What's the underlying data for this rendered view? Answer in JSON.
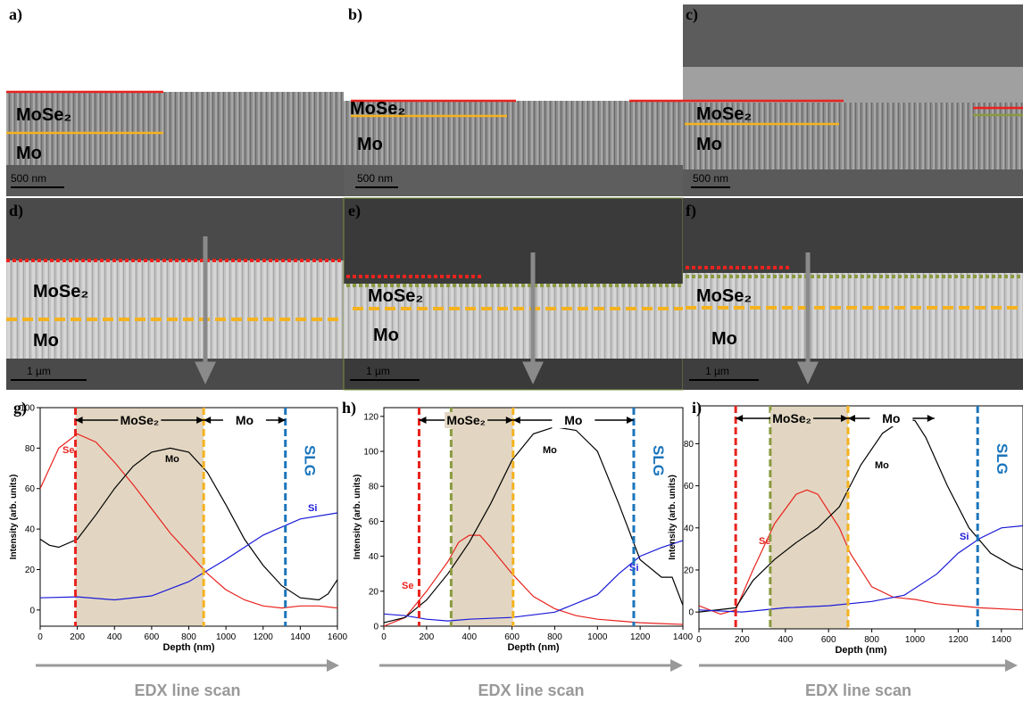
{
  "panels": [
    {
      "label": "a)",
      "layers": [
        "MoSe₂",
        "Mo"
      ],
      "scale_bar": "500 nm"
    },
    {
      "label": "b)",
      "layers": [
        "MoSe₂",
        "Mo"
      ],
      "scale_bar": "500 nm"
    },
    {
      "label": "c)",
      "layers": [
        "MoSe₂",
        "Mo"
      ],
      "scale_bar": "500 nm"
    },
    {
      "label": "d)",
      "layers": [
        "MoSe₂",
        "Mo"
      ],
      "scale_bar": "1 µm"
    },
    {
      "label": "e)",
      "layers": [
        "MoSe₂",
        "Mo"
      ],
      "scale_bar": "1 µm"
    },
    {
      "label": "f)",
      "layers": [
        "MoSe₂",
        "Mo"
      ],
      "scale_bar": "1 µm"
    }
  ],
  "chart_data": [
    {
      "type": "line",
      "title": "g)",
      "x_label": "Depth (nm)",
      "y_label": "Intensity (arb. units)",
      "xlim": [
        0,
        1600
      ],
      "xticks": [
        0,
        200,
        400,
        600,
        800,
        1000,
        1200,
        1400,
        1600
      ],
      "ylim": [
        -8,
        100
      ],
      "yticks": [
        0,
        20,
        40,
        60,
        80,
        100
      ],
      "series": [
        {
          "name": "Se",
          "color": "#e8231e",
          "x": [
            0,
            100,
            200,
            300,
            400,
            500,
            600,
            700,
            800,
            900,
            1000,
            1100,
            1200,
            1300,
            1400,
            1500,
            1600
          ],
          "values": [
            60,
            80,
            87,
            83,
            73,
            62,
            50,
            38,
            28,
            18,
            10,
            5,
            2,
            1,
            2,
            2,
            1
          ]
        },
        {
          "name": "Mo",
          "color": "#000000",
          "x": [
            0,
            50,
            100,
            200,
            300,
            400,
            500,
            600,
            700,
            800,
            900,
            1000,
            1100,
            1200,
            1300,
            1400,
            1500,
            1550,
            1600
          ],
          "values": [
            35,
            32,
            31,
            35,
            47,
            60,
            71,
            78,
            80,
            78,
            68,
            52,
            35,
            22,
            12,
            6,
            5,
            8,
            15
          ]
        },
        {
          "name": "Si",
          "color": "#1a1ad8",
          "x": [
            0,
            200,
            400,
            600,
            800,
            1000,
            1200,
            1400,
            1600
          ],
          "values": [
            6,
            6.5,
            5,
            7,
            14,
            25,
            37,
            45,
            48
          ]
        }
      ],
      "vlines": [
        {
          "x": 190,
          "color": "#e8231e"
        },
        {
          "x": 880,
          "color": "#f5b21e"
        },
        {
          "x": 1320,
          "color": "#1b75bb"
        }
      ],
      "span": [
        190,
        880
      ],
      "arrows": [
        {
          "text": "MoSe₂",
          "x": [
            190,
            880
          ]
        },
        {
          "text": "Mo",
          "x": [
            880,
            1320
          ]
        }
      ],
      "substrate": "SLG",
      "footer": "EDX line scan"
    },
    {
      "type": "line",
      "title": "h)",
      "x_label": "Depth (nm)",
      "y_label": "Intensity (arb. units)",
      "xlim": [
        0,
        1400
      ],
      "xticks": [
        0,
        200,
        400,
        600,
        800,
        1000,
        1200,
        1400
      ],
      "ylim": [
        0,
        125
      ],
      "yticks": [
        0,
        20,
        40,
        60,
        80,
        100,
        120
      ],
      "series": [
        {
          "name": "Se",
          "color": "#e8231e",
          "x": [
            0,
            100,
            200,
            300,
            350,
            400,
            450,
            500,
            600,
            700,
            800,
            900,
            1000,
            1100,
            1200,
            1300,
            1400
          ],
          "values": [
            0,
            5,
            20,
            37,
            48,
            52,
            52,
            45,
            30,
            17,
            10,
            6,
            4,
            3,
            2,
            1.5,
            1
          ]
        },
        {
          "name": "Mo",
          "color": "#000000",
          "x": [
            0,
            100,
            200,
            300,
            400,
            500,
            600,
            700,
            800,
            900,
            1000,
            1100,
            1200,
            1300,
            1350,
            1400
          ],
          "values": [
            2,
            5,
            15,
            30,
            48,
            70,
            95,
            110,
            114,
            112,
            100,
            70,
            38,
            28,
            28,
            12
          ]
        },
        {
          "name": "Si",
          "color": "#1a1ad8",
          "x": [
            0,
            100,
            200,
            300,
            400,
            600,
            800,
            1000,
            1100,
            1200,
            1300,
            1400
          ],
          "values": [
            7,
            6,
            4,
            3,
            4,
            5,
            8,
            18,
            30,
            40,
            45,
            49
          ]
        }
      ],
      "vlines": [
        {
          "x": 165,
          "color": "#e8231e"
        },
        {
          "x": 315,
          "color": "#8a9a40"
        },
        {
          "x": 605,
          "color": "#f5b21e"
        },
        {
          "x": 1170,
          "color": "#1b75bb"
        }
      ],
      "span": [
        315,
        605
      ],
      "arrows": [
        {
          "text": "MoSe₂",
          "x": [
            165,
            605
          ]
        },
        {
          "text": "Mo",
          "x": [
            605,
            1170
          ]
        }
      ],
      "substrate": "SLG",
      "footer": "EDX line scan"
    },
    {
      "type": "line",
      "title": "i)",
      "x_label": "Depth (nm)",
      "y_label": "Intensity (arb. units)",
      "xlim": [
        0,
        1500
      ],
      "xticks": [
        0,
        200,
        400,
        600,
        800,
        1000,
        1200,
        1400
      ],
      "ylim": [
        -8,
        98
      ],
      "yticks": [
        0,
        20,
        40,
        60,
        80
      ],
      "series": [
        {
          "name": "Se",
          "color": "#e8231e",
          "x": [
            0,
            100,
            170,
            250,
            350,
            450,
            500,
            550,
            650,
            700,
            800,
            900,
            1000,
            1100,
            1200,
            1300,
            1500
          ],
          "values": [
            3,
            -1,
            1,
            20,
            42,
            56,
            58,
            56,
            40,
            28,
            12,
            7,
            6,
            4,
            3,
            2,
            1
          ]
        },
        {
          "name": "Mo",
          "color": "#000000",
          "x": [
            0,
            170,
            250,
            350,
            450,
            550,
            650,
            750,
            850,
            950,
            1000,
            1050,
            1150,
            1250,
            1350,
            1450,
            1500
          ],
          "values": [
            0,
            2,
            15,
            25,
            33,
            40,
            50,
            70,
            85,
            92,
            91,
            83,
            60,
            40,
            28,
            22,
            20
          ]
        },
        {
          "name": "Si",
          "color": "#1a1ad8",
          "x": [
            0,
            200,
            400,
            600,
            800,
            950,
            1100,
            1200,
            1300,
            1400,
            1500
          ],
          "values": [
            1,
            0,
            2,
            3,
            5,
            8,
            18,
            28,
            35,
            40,
            41
          ]
        }
      ],
      "vlines": [
        {
          "x": 170,
          "color": "#e8231e"
        },
        {
          "x": 330,
          "color": "#8a9a40"
        },
        {
          "x": 690,
          "color": "#f5b21e"
        },
        {
          "x": 1290,
          "color": "#1b75bb"
        }
      ],
      "span": [
        330,
        690
      ],
      "arrows": [
        {
          "text": "MoSe₂",
          "x": [
            170,
            690
          ]
        },
        {
          "text": "Mo",
          "x": [
            690,
            1090
          ]
        }
      ],
      "substrate": "SLG",
      "footer": "EDX line scan"
    }
  ]
}
